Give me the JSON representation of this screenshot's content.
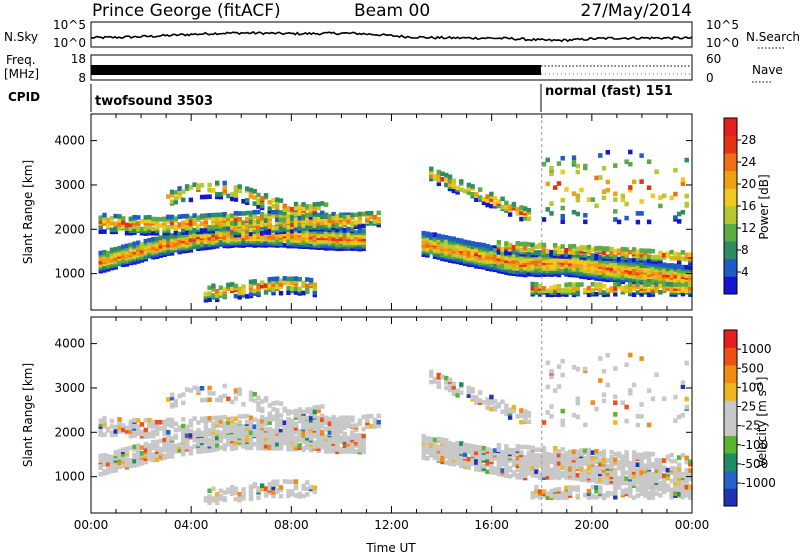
{
  "header": {
    "station": "Prince George (fitACF)",
    "beam": "Beam 00",
    "date": "27/May/2014"
  },
  "nsky_panel": {
    "left_label": "N.Sky",
    "left_ticks": [
      "10^5",
      "10^0"
    ],
    "right_ticks": [
      "10^5",
      "10^0"
    ],
    "right_label": "N.Search"
  },
  "freq_panel": {
    "left_label_1": "Freq.",
    "left_label_2": "[MHz]",
    "left_ticks": [
      "18",
      "8"
    ],
    "right_ticks": [
      "60",
      "0"
    ],
    "right_label": "Nave"
  },
  "cpid_panel": {
    "label": "CPID",
    "modes": [
      {
        "name": "twofsound 3503",
        "start_hour": 0
      },
      {
        "name": "normal (fast) 151",
        "start_hour": 18
      }
    ]
  },
  "chart_data": [
    {
      "type": "heatmap",
      "name": "power",
      "xlabel": "",
      "ylabel": "Slant Range [km]",
      "xlim": [
        0,
        24
      ],
      "ylim": [
        180,
        4600
      ],
      "y_ticks": [
        "1000",
        "2000",
        "3000",
        "4000"
      ],
      "colorbar": {
        "label": "Power [dB]",
        "tick_labels": [
          "4",
          "8",
          "12",
          "16",
          "20",
          "24",
          "28"
        ],
        "colors": [
          "#1414d2",
          "#1e5ac8",
          "#2d8c64",
          "#5aaa46",
          "#b4c832",
          "#f0c81e",
          "#f0a014",
          "#f06e14",
          "#e63214",
          "#e61e1e"
        ]
      }
    },
    {
      "type": "heatmap",
      "name": "velocity",
      "xlabel": "Time UT",
      "ylabel": "Slant Range [km]",
      "xlim": [
        0,
        24
      ],
      "ylim": [
        180,
        4600
      ],
      "x_ticks": [
        "00:00",
        "04:00",
        "08:00",
        "12:00",
        "16:00",
        "20:00",
        "00:00"
      ],
      "y_ticks": [
        "1000",
        "2000",
        "3000",
        "4000"
      ],
      "colorbar": {
        "label": "Velocity [m s^-1]",
        "tick_labels": [
          "1000",
          "500",
          "100",
          "25",
          "-25",
          "-100",
          "-500",
          "-1000"
        ],
        "colors": [
          "#1e32b4",
          "#2864c8",
          "#1e8c64",
          "#5ab432",
          "#c8c8c8",
          "#c8c8c8",
          "#f0b41e",
          "#f08c14",
          "#f05014",
          "#e61e1e"
        ]
      }
    }
  ]
}
